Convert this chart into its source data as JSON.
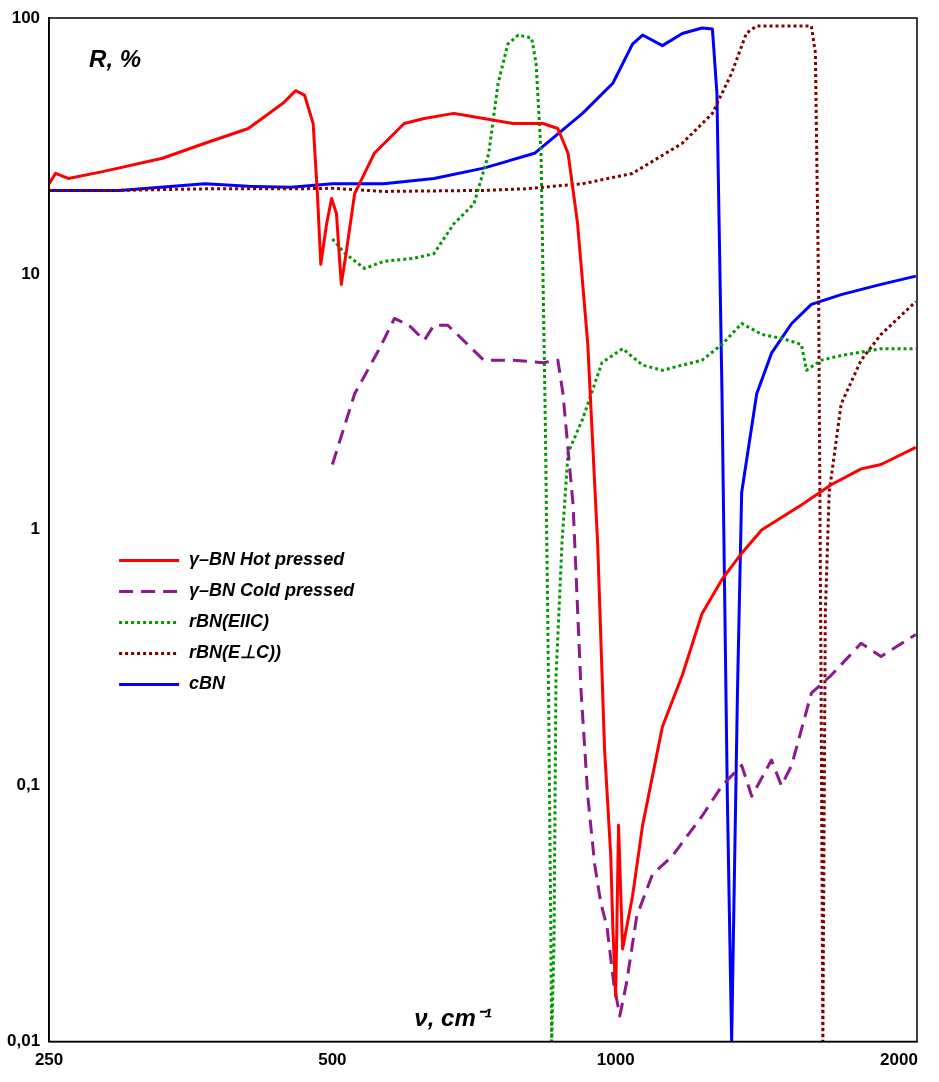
{
  "chart_data": {
    "type": "line",
    "xlabel": "ν, cm⁻¹",
    "ylabel": "R, %",
    "log": "xy",
    "xlim": [
      250,
      2090
    ],
    "ylim": [
      0.01,
      100
    ],
    "xticks": [
      250,
      500,
      1000,
      2000
    ],
    "yticks": [
      {
        "value": 0.01,
        "label": "0,01"
      },
      {
        "value": 0.1,
        "label": "0,1"
      },
      1,
      10,
      100
    ],
    "legend": "left",
    "series": [
      {
        "name": "γ–BN Hot pressed",
        "color": "#ff0000",
        "line_style": "solid",
        "x": [
          250,
          254,
          262,
          285,
          330,
          366,
          407,
          443,
          457,
          467,
          477,
          482,
          486,
          493,
          499,
          505,
          511,
          517,
          528,
          554,
          596,
          626,
          673,
          724,
          778,
          837,
          868,
          890,
          911,
          934,
          957,
          973,
          988,
          993,
          1000,
          1007,
          1017,
          1042,
          1068,
          1121,
          1177,
          1235,
          1297,
          1361,
          1430,
          1575,
          1694,
          1823,
          1914,
          2084
        ],
        "values": [
          22.5,
          24.7,
          23.6,
          25.1,
          28.3,
          32.4,
          37,
          46.4,
          52,
          50,
          38.7,
          20.6,
          10.9,
          15.7,
          19.7,
          17.2,
          9.1,
          12,
          20.6,
          29.6,
          38.7,
          40.5,
          42.4,
          40.5,
          38.7,
          38.7,
          37,
          29.6,
          15.7,
          5.3,
          0.87,
          0.14,
          0.053,
          0.028,
          0.015,
          0.07,
          0.023,
          0.037,
          0.07,
          0.17,
          0.27,
          0.47,
          0.64,
          0.81,
          1.0,
          1.25,
          1.5,
          1.73,
          1.8,
          2.1
        ]
      },
      {
        "name": "γ–BN Cold pressed",
        "color": "#8b1a8b",
        "line_style": "dashed",
        "x": [
          500,
          516,
          528,
          541,
          561,
          582,
          603,
          626,
          641,
          663,
          689,
          724,
          778,
          837,
          868,
          879,
          901,
          919,
          934,
          950,
          964,
          979,
          995,
          1010,
          1027,
          1053,
          1094,
          1148,
          1235,
          1297,
          1361,
          1395,
          1464,
          1500,
          1538,
          1614,
          1694,
          1823,
          1914,
          2084
        ],
        "values": [
          1.8,
          2.6,
          3.4,
          4.0,
          5.1,
          6.7,
          6.3,
          5.5,
          6.3,
          6.3,
          5.5,
          4.6,
          4.6,
          4.5,
          4.6,
          3.4,
          1.25,
          0.23,
          0.091,
          0.049,
          0.035,
          0.028,
          0.017,
          0.0126,
          0.017,
          0.031,
          0.045,
          0.053,
          0.076,
          0.1,
          0.12,
          0.091,
          0.126,
          0.1,
          0.12,
          0.23,
          0.27,
          0.36,
          0.32,
          0.39
        ]
      },
      {
        "name": "rBN(EIIC)",
        "color": "#009900",
        "line_style": "dotted",
        "x": [
          500,
          516,
          541,
          567,
          610,
          641,
          673,
          707,
          733,
          750,
          768,
          788,
          814,
          823,
          833,
          842,
          848,
          853,
          855,
          860,
          864,
          877,
          890,
          922,
          967,
          1017,
          1068,
          1121,
          1177,
          1235,
          1297,
          1361,
          1430,
          1500,
          1575,
          1595,
          1653,
          1736,
          1914,
          2084
        ],
        "values": [
          13.7,
          12,
          10.5,
          11.2,
          11.5,
          12,
          15.7,
          18.8,
          29.6,
          55.6,
          79,
          85.8,
          83.5,
          66.6,
          30,
          2.5,
          0.3,
          0.03,
          0.01,
          0.025,
          0.26,
          0.9,
          2,
          2.7,
          4.5,
          5.1,
          4.4,
          4.2,
          4.4,
          4.6,
          5.3,
          6.4,
          5.8,
          5.6,
          5.3,
          4.2,
          4.6,
          4.8,
          5.1,
          5.1
        ]
      },
      {
        "name": "rBN(E⊥C))",
        "color": "#800000",
        "line_style": "dotted",
        "x": [
          250,
          297,
          366,
          452,
          500,
          567,
          724,
          800,
          922,
          1042,
          1177,
          1267,
          1328,
          1377,
          1412,
          1614,
          1630,
          1643,
          1653,
          1660,
          1670,
          1686,
          1736,
          1823,
          1914,
          2084
        ],
        "values": [
          21.2,
          21.2,
          21.5,
          21.5,
          21.6,
          21,
          21.2,
          21.5,
          22.5,
          24.7,
          32.4,
          42.4,
          60.9,
          87.3,
          93,
          93,
          73,
          8.3,
          0.23,
          0.01,
          0.47,
          1.4,
          3.1,
          4.6,
          5.8,
          7.8
        ]
      },
      {
        "name": "cBN",
        "color": "#0000ff",
        "line_style": "solid",
        "x": [
          250,
          297,
          366,
          407,
          452,
          500,
          567,
          641,
          724,
          820,
          922,
          993,
          1042,
          1068,
          1121,
          1177,
          1235,
          1267,
          1281,
          1297,
          1314,
          1328,
          1347,
          1361,
          1412,
          1464,
          1538,
          1614,
          1736,
          1914,
          2084
        ],
        "values": [
          21.2,
          21.2,
          22.5,
          22,
          21.8,
          22.5,
          22.5,
          23.6,
          25.9,
          29.6,
          42.4,
          55.6,
          79,
          85.8,
          78,
          87,
          91.4,
          90.5,
          50.8,
          3.4,
          0.092,
          0.01,
          0.23,
          1.4,
          3.4,
          4.9,
          6.4,
          7.6,
          8.3,
          9.1,
          9.8
        ]
      }
    ]
  }
}
